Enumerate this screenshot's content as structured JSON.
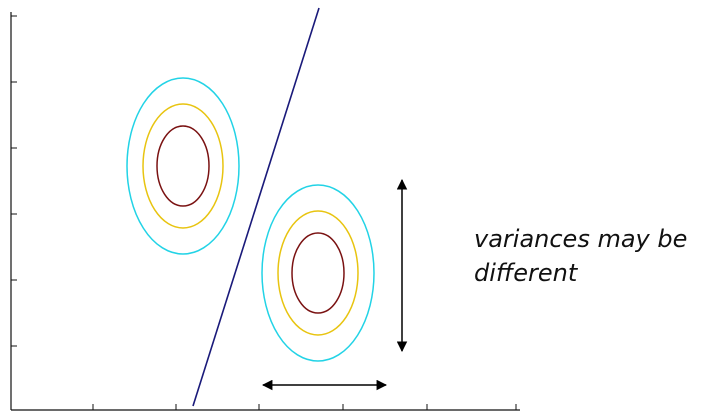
{
  "annotation": {
    "line1": "variances may be",
    "line2": "different"
  },
  "colors": {
    "outer_contour": "#22d3e6",
    "middle_contour": "#e8c410",
    "inner_contour": "#7a1212",
    "decision_boundary": "#1a1a7a",
    "axes": "#111111",
    "arrows": "#000000"
  }
}
